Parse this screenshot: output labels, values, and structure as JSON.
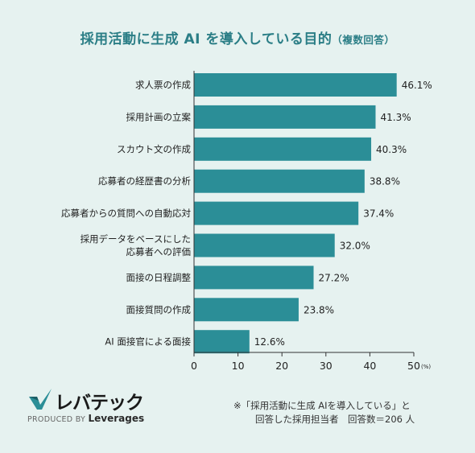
{
  "title": {
    "main": "採用活動に生成 AI を導入している目的",
    "sub": "（複数回答）"
  },
  "chart_data": {
    "type": "bar",
    "orientation": "horizontal",
    "categories": [
      "求人票の作成",
      "採用計画の立案",
      "スカウト文の作成",
      "応募者の経歴書の分析",
      "応募者からの質問への自動応対",
      "採用データをベースにした\n応募者への評価",
      "面接の日程調整",
      "面接質問の作成",
      "AI 面接官による面接"
    ],
    "values": [
      46.1,
      41.3,
      40.3,
      38.8,
      37.4,
      32.0,
      27.2,
      23.8,
      12.6
    ],
    "value_labels": [
      "46.1%",
      "41.3%",
      "40.3%",
      "38.8%",
      "37.4%",
      "32.0%",
      "27.2%",
      "23.8%",
      "12.6%"
    ],
    "xlim": [
      0,
      50
    ],
    "xticks": [
      "0",
      "10",
      "20",
      "30",
      "40",
      "50"
    ],
    "xunit": "(%)",
    "bar_color": "#2b8e97",
    "grid": false
  },
  "logo": {
    "brand": "レバテック",
    "produced_by": "PRODUCED BY",
    "company": "Leverages"
  },
  "note": {
    "line1": "※「採用活動に生成 AIを導入している」と",
    "line2": "回答した採用担当者　回答数＝206 人"
  }
}
